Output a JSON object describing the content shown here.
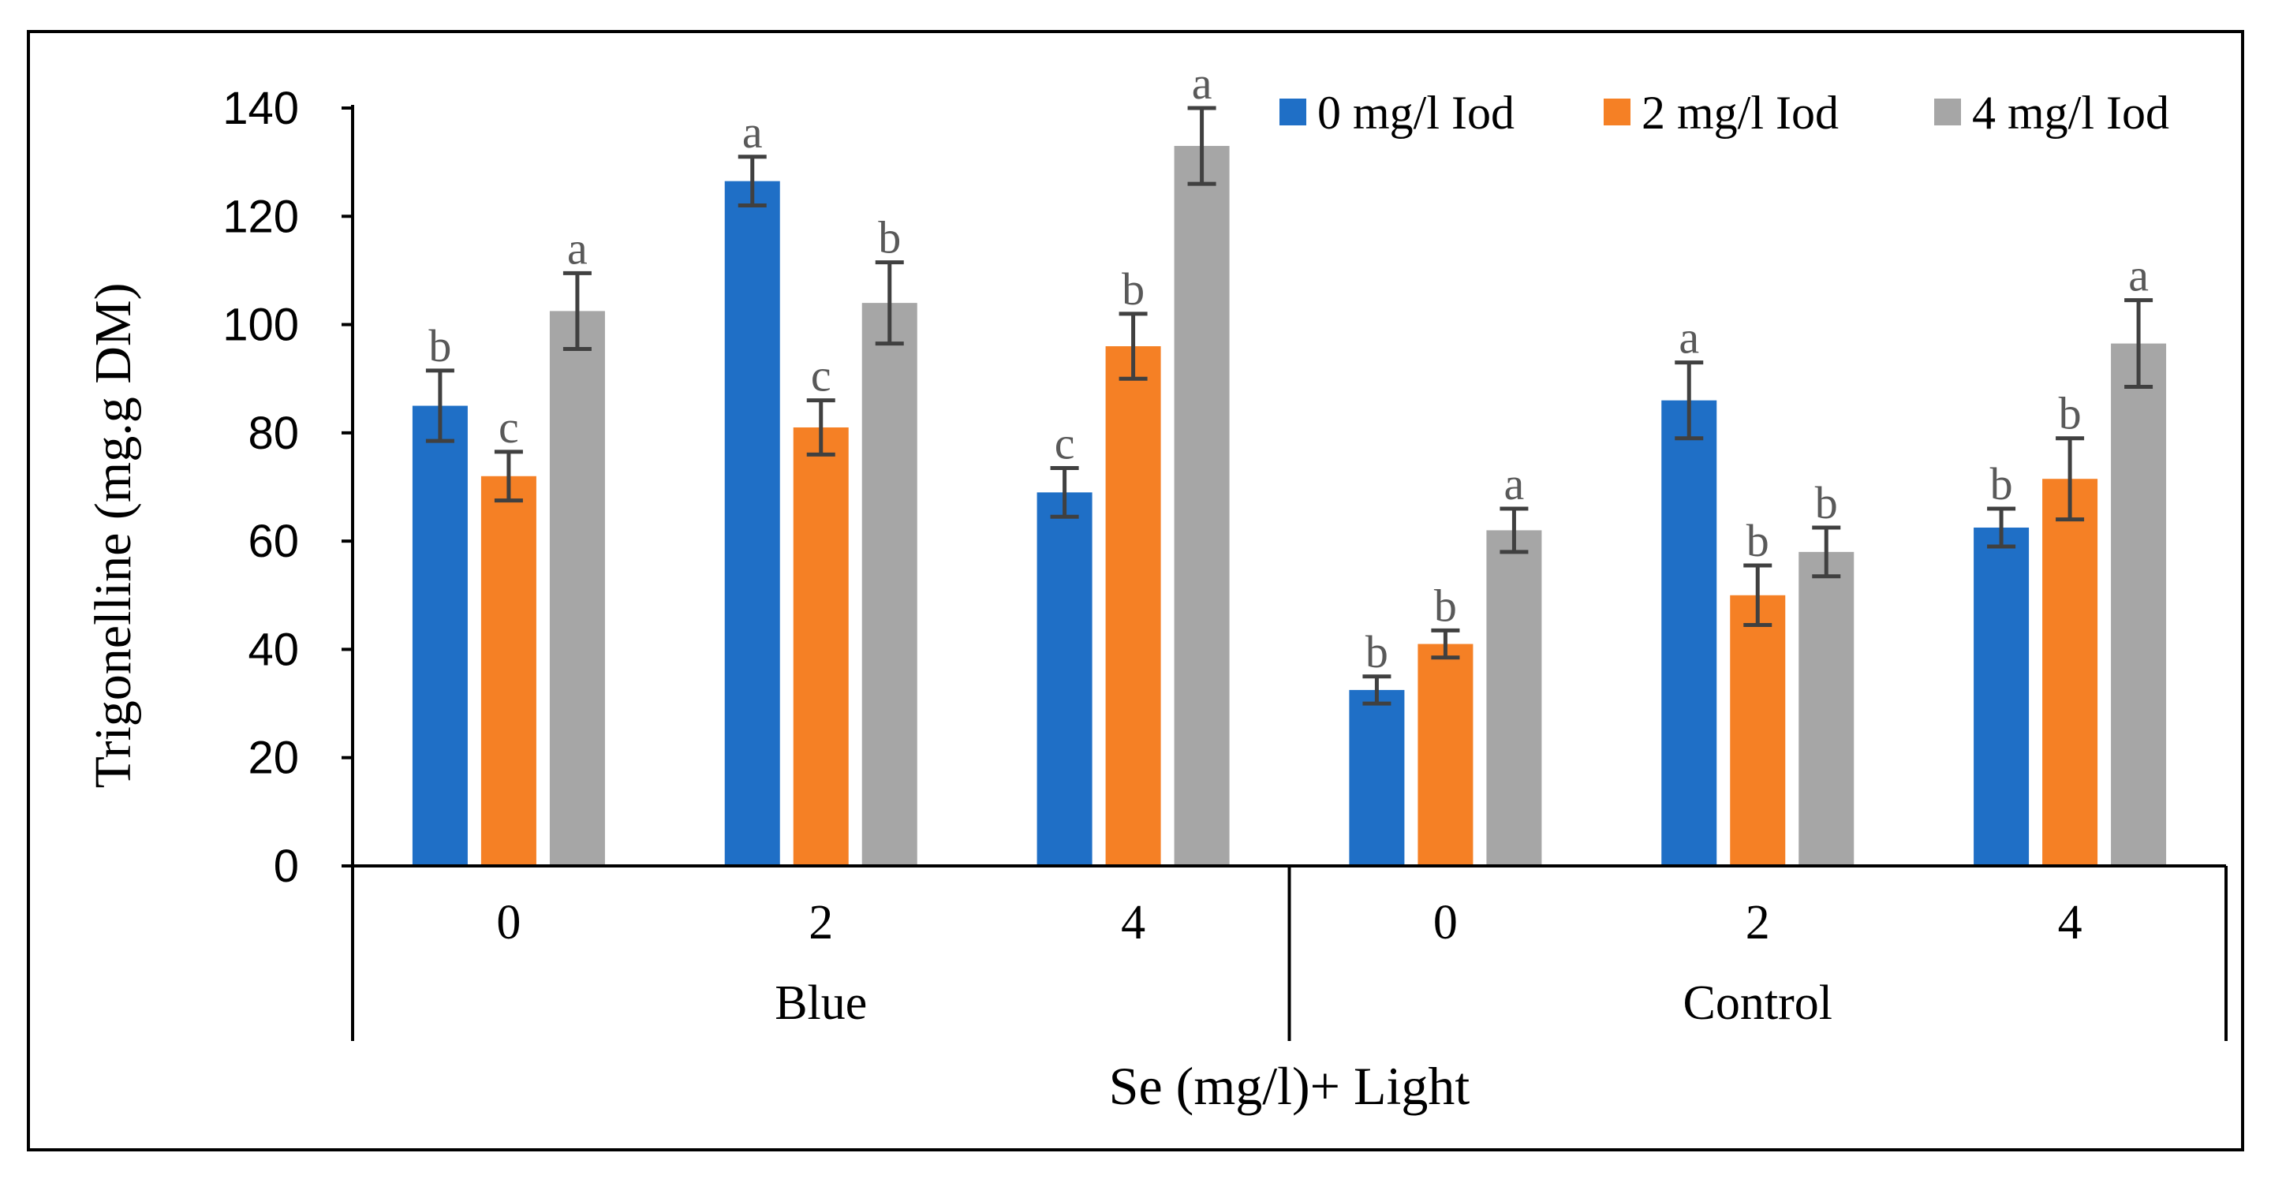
{
  "chart_data": {
    "type": "bar",
    "title": "",
    "xlabel": "Se (mg/l)+ Light",
    "ylabel": "Trigonelline (mg.g DM)",
    "ylim": [
      0,
      140
    ],
    "yticks": [
      0,
      20,
      40,
      60,
      80,
      100,
      120,
      140
    ],
    "grid": false,
    "legend_position": "top-right",
    "groups": [
      {
        "label": "Blue",
        "categories": [
          "0",
          "2",
          "4"
        ]
      },
      {
        "label": "Control",
        "categories": [
          "0",
          "2",
          "4"
        ]
      }
    ],
    "series": [
      {
        "name": "0 mg/l Iod",
        "color": "#1f6fc6",
        "values": [
          85,
          126.5,
          69,
          32.5,
          86,
          62.5
        ],
        "errors": [
          6.5,
          4.5,
          4.5,
          2.5,
          7,
          3.5
        ],
        "letters": [
          "b",
          "a",
          "c",
          "b",
          "a",
          "b"
        ]
      },
      {
        "name": "2 mg/l Iod",
        "color": "#f58025",
        "values": [
          72,
          81,
          96,
          41,
          50,
          71.5
        ],
        "errors": [
          4.5,
          5,
          6,
          2.5,
          5.5,
          7.5
        ],
        "letters": [
          "c",
          "c",
          "b",
          "b",
          "b",
          "b"
        ]
      },
      {
        "name": "4 mg/l Iod",
        "color": "#a6a6a6",
        "values": [
          102.5,
          104,
          133,
          62,
          58,
          96.5
        ],
        "errors": [
          7,
          7.5,
          7,
          4,
          4.5,
          8
        ],
        "letters": [
          "a",
          "b",
          "a",
          "a",
          "b",
          "a"
        ]
      }
    ]
  }
}
